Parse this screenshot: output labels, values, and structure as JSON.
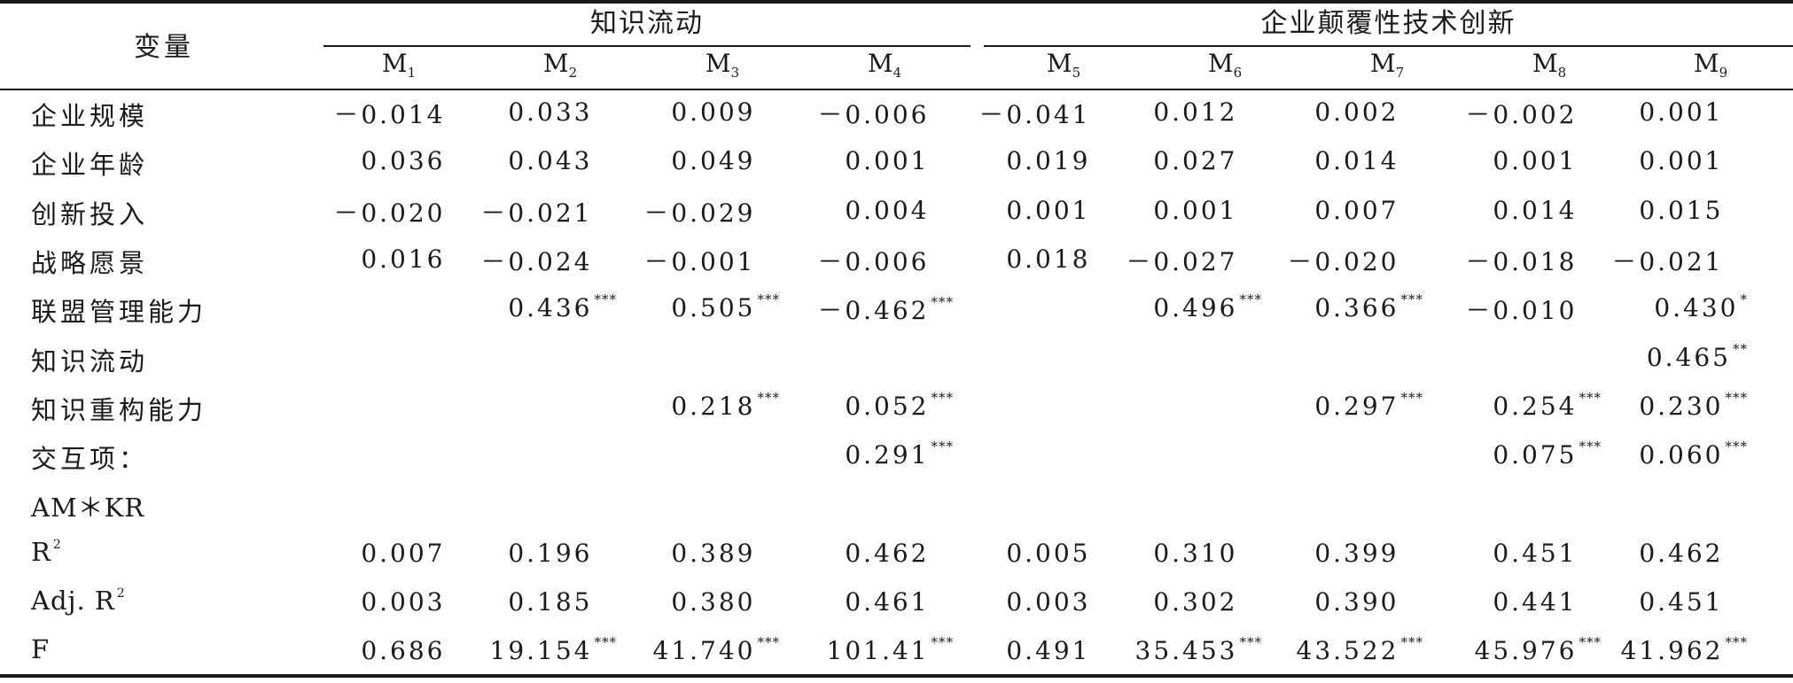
{
  "header": {
    "variable": "变量",
    "group1": "知识流动",
    "group2": "企业颠覆性技术创新",
    "models": [
      {
        "m": "M",
        "sub": "1"
      },
      {
        "m": "M",
        "sub": "2"
      },
      {
        "m": "M",
        "sub": "3"
      },
      {
        "m": "M",
        "sub": "4"
      },
      {
        "m": "M",
        "sub": "5"
      },
      {
        "m": "M",
        "sub": "6"
      },
      {
        "m": "M",
        "sub": "7"
      },
      {
        "m": "M",
        "sub": "8"
      },
      {
        "m": "M",
        "sub": "9"
      }
    ]
  },
  "rows": [
    {
      "label": "企业规模",
      "sup": "",
      "cells": [
        {
          "v": "－0.014",
          "s": ""
        },
        {
          "v": "0.033",
          "s": ""
        },
        {
          "v": "0.009",
          "s": ""
        },
        {
          "v": "－0.006",
          "s": ""
        },
        {
          "v": "－0.041",
          "s": ""
        },
        {
          "v": "0.012",
          "s": ""
        },
        {
          "v": "0.002",
          "s": ""
        },
        {
          "v": "－0.002",
          "s": ""
        },
        {
          "v": "0.001",
          "s": ""
        }
      ]
    },
    {
      "label": "企业年龄",
      "sup": "",
      "cells": [
        {
          "v": "0.036",
          "s": ""
        },
        {
          "v": "0.043",
          "s": ""
        },
        {
          "v": "0.049",
          "s": ""
        },
        {
          "v": "0.001",
          "s": ""
        },
        {
          "v": "0.019",
          "s": ""
        },
        {
          "v": "0.027",
          "s": ""
        },
        {
          "v": "0.014",
          "s": ""
        },
        {
          "v": "0.001",
          "s": ""
        },
        {
          "v": "0.001",
          "s": ""
        }
      ]
    },
    {
      "label": "创新投入",
      "sup": "",
      "cells": [
        {
          "v": "－0.020",
          "s": ""
        },
        {
          "v": "－0.021",
          "s": ""
        },
        {
          "v": "－0.029",
          "s": ""
        },
        {
          "v": "0.004",
          "s": ""
        },
        {
          "v": "0.001",
          "s": ""
        },
        {
          "v": "0.001",
          "s": ""
        },
        {
          "v": "0.007",
          "s": ""
        },
        {
          "v": "0.014",
          "s": ""
        },
        {
          "v": "0.015",
          "s": ""
        }
      ]
    },
    {
      "label": "战略愿景",
      "sup": "",
      "cells": [
        {
          "v": "0.016",
          "s": ""
        },
        {
          "v": "－0.024",
          "s": ""
        },
        {
          "v": "－0.001",
          "s": ""
        },
        {
          "v": "－0.006",
          "s": ""
        },
        {
          "v": "0.018",
          "s": ""
        },
        {
          "v": "－0.027",
          "s": ""
        },
        {
          "v": "－0.020",
          "s": ""
        },
        {
          "v": "－0.018",
          "s": ""
        },
        {
          "v": "－0.021",
          "s": ""
        }
      ]
    },
    {
      "label": "联盟管理能力",
      "sup": "",
      "cells": [
        {
          "v": "",
          "s": ""
        },
        {
          "v": "0.436",
          "s": "***"
        },
        {
          "v": "0.505",
          "s": "***"
        },
        {
          "v": "－0.462",
          "s": "***"
        },
        {
          "v": "",
          "s": ""
        },
        {
          "v": "0.496",
          "s": "***"
        },
        {
          "v": "0.366",
          "s": "***"
        },
        {
          "v": "－0.010",
          "s": ""
        },
        {
          "v": "0.430",
          "s": "*"
        }
      ]
    },
    {
      "label": "知识流动",
      "sup": "",
      "cells": [
        {
          "v": "",
          "s": ""
        },
        {
          "v": "",
          "s": ""
        },
        {
          "v": "",
          "s": ""
        },
        {
          "v": "",
          "s": ""
        },
        {
          "v": "",
          "s": ""
        },
        {
          "v": "",
          "s": ""
        },
        {
          "v": "",
          "s": ""
        },
        {
          "v": "",
          "s": ""
        },
        {
          "v": "0.465",
          "s": "**"
        }
      ]
    },
    {
      "label": "知识重构能力",
      "sup": "",
      "cells": [
        {
          "v": "",
          "s": ""
        },
        {
          "v": "",
          "s": ""
        },
        {
          "v": "0.218",
          "s": "***"
        },
        {
          "v": "0.052",
          "s": "***"
        },
        {
          "v": "",
          "s": ""
        },
        {
          "v": "",
          "s": ""
        },
        {
          "v": "0.297",
          "s": "***"
        },
        {
          "v": "0.254",
          "s": "***"
        },
        {
          "v": "0.230",
          "s": "***"
        }
      ]
    },
    {
      "label": "交互项：",
      "sup": "",
      "cells": [
        {
          "v": "",
          "s": ""
        },
        {
          "v": "",
          "s": ""
        },
        {
          "v": "",
          "s": ""
        },
        {
          "v": "0.291",
          "s": "***"
        },
        {
          "v": "",
          "s": ""
        },
        {
          "v": "",
          "s": ""
        },
        {
          "v": "",
          "s": ""
        },
        {
          "v": "0.075",
          "s": "***"
        },
        {
          "v": "0.060",
          "s": "***"
        }
      ]
    },
    {
      "label": "AM＊KR",
      "sup": "",
      "latin": true,
      "cells": [
        {
          "v": "",
          "s": ""
        },
        {
          "v": "",
          "s": ""
        },
        {
          "v": "",
          "s": ""
        },
        {
          "v": "",
          "s": ""
        },
        {
          "v": "",
          "s": ""
        },
        {
          "v": "",
          "s": ""
        },
        {
          "v": "",
          "s": ""
        },
        {
          "v": "",
          "s": ""
        },
        {
          "v": "",
          "s": ""
        }
      ]
    },
    {
      "label": "R",
      "sup": "2",
      "latin": true,
      "cells": [
        {
          "v": "0.007",
          "s": ""
        },
        {
          "v": "0.196",
          "s": ""
        },
        {
          "v": "0.389",
          "s": ""
        },
        {
          "v": "0.462",
          "s": ""
        },
        {
          "v": "0.005",
          "s": ""
        },
        {
          "v": "0.310",
          "s": ""
        },
        {
          "v": "0.399",
          "s": ""
        },
        {
          "v": "0.451",
          "s": ""
        },
        {
          "v": "0.462",
          "s": ""
        }
      ]
    },
    {
      "label": "Adj. R",
      "sup": "2",
      "latin": true,
      "cells": [
        {
          "v": "0.003",
          "s": ""
        },
        {
          "v": "0.185",
          "s": ""
        },
        {
          "v": "0.380",
          "s": ""
        },
        {
          "v": "0.461",
          "s": ""
        },
        {
          "v": "0.003",
          "s": ""
        },
        {
          "v": "0.302",
          "s": ""
        },
        {
          "v": "0.390",
          "s": ""
        },
        {
          "v": "0.441",
          "s": ""
        },
        {
          "v": "0.451",
          "s": ""
        }
      ]
    },
    {
      "label": "F",
      "sup": "",
      "latin": true,
      "cells": [
        {
          "v": "0.686",
          "s": ""
        },
        {
          "v": "19.154",
          "s": "***"
        },
        {
          "v": "41.740",
          "s": "***"
        },
        {
          "v": "101.41",
          "s": "***"
        },
        {
          "v": "0.491",
          "s": ""
        },
        {
          "v": "35.453",
          "s": "***"
        },
        {
          "v": "43.522",
          "s": "***"
        },
        {
          "v": "45.976",
          "s": "***"
        },
        {
          "v": "41.962",
          "s": "***"
        }
      ]
    }
  ]
}
